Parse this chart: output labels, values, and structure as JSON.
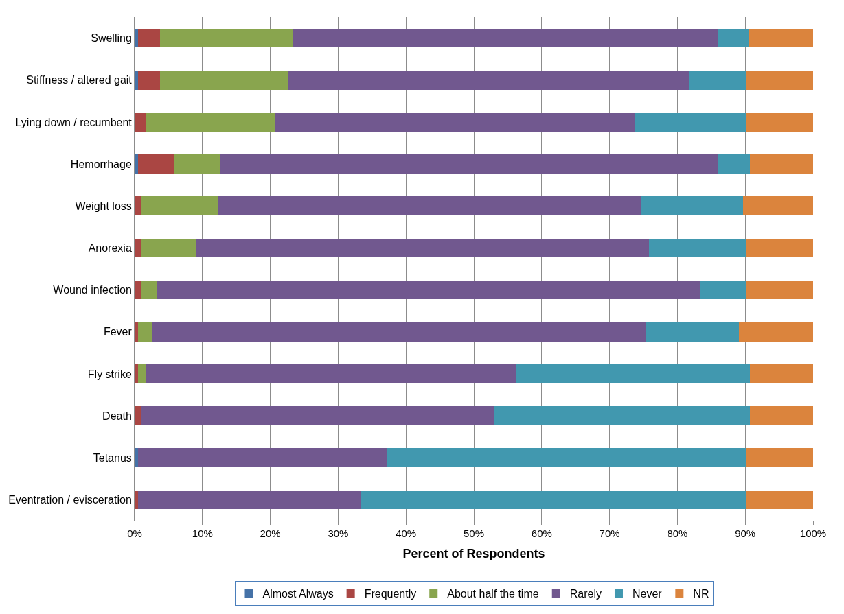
{
  "chart_data": {
    "type": "bar",
    "orientation": "horizontal",
    "stacked": true,
    "xlabel": "Percent of Respondents",
    "categories": [
      "Swelling",
      "Stiffness / altered gait",
      "Lying down / recumbent",
      "Hemorrhage",
      "Weight loss",
      "Anorexia",
      "Wound infection",
      "Fever",
      "Fly strike",
      "Death",
      "Tetanus",
      "Eventration / evisceration"
    ],
    "series": [
      {
        "name": "Almost Always",
        "color": "#4572a7",
        "values": [
          0.5,
          0.5,
          null,
          0.5,
          null,
          null,
          null,
          null,
          null,
          null,
          0.5,
          null
        ]
      },
      {
        "name": "Frequently",
        "color": "#aa4643",
        "values": [
          3.2,
          3.2,
          1.6,
          5.3,
          1.0,
          1.0,
          1.0,
          0.5,
          0.5,
          1.0,
          null,
          0.5
        ]
      },
      {
        "name": "About half the time",
        "color": "#89a54e",
        "values": [
          19.6,
          19.0,
          19.0,
          6.9,
          11.2,
          8.0,
          2.2,
          2.1,
          1.1,
          null,
          null,
          null
        ]
      },
      {
        "name": "Rarely",
        "color": "#71588f",
        "values": [
          62.6,
          59.0,
          53.1,
          73.2,
          62.5,
          66.8,
          80.1,
          72.7,
          54.6,
          52.0,
          36.6,
          32.8
        ]
      },
      {
        "name": "Never",
        "color": "#4198af",
        "values": [
          4.7,
          8.5,
          16.5,
          4.8,
          15.0,
          14.4,
          6.9,
          13.8,
          34.5,
          37.7,
          53.1,
          56.9
        ]
      },
      {
        "name": "NR",
        "color": "#db843d",
        "values": [
          9.4,
          9.8,
          9.8,
          9.3,
          10.3,
          9.8,
          9.8,
          10.9,
          9.3,
          9.3,
          9.8,
          9.8
        ]
      }
    ],
    "xlim": [
      0,
      100
    ],
    "xticks": [
      {
        "value": 0,
        "label": "0%"
      },
      {
        "value": 10,
        "label": "10%"
      },
      {
        "value": 20,
        "label": "20%"
      },
      {
        "value": 30,
        "label": "30%"
      },
      {
        "value": 40,
        "label": "40%"
      },
      {
        "value": 50,
        "label": "50%"
      },
      {
        "value": 60,
        "label": "60%"
      },
      {
        "value": 70,
        "label": "70%"
      },
      {
        "value": 80,
        "label": "80%"
      },
      {
        "value": 90,
        "label": "90%"
      },
      {
        "value": 100,
        "label": "100%"
      }
    ],
    "grid": "x",
    "legend": "bottom"
  }
}
